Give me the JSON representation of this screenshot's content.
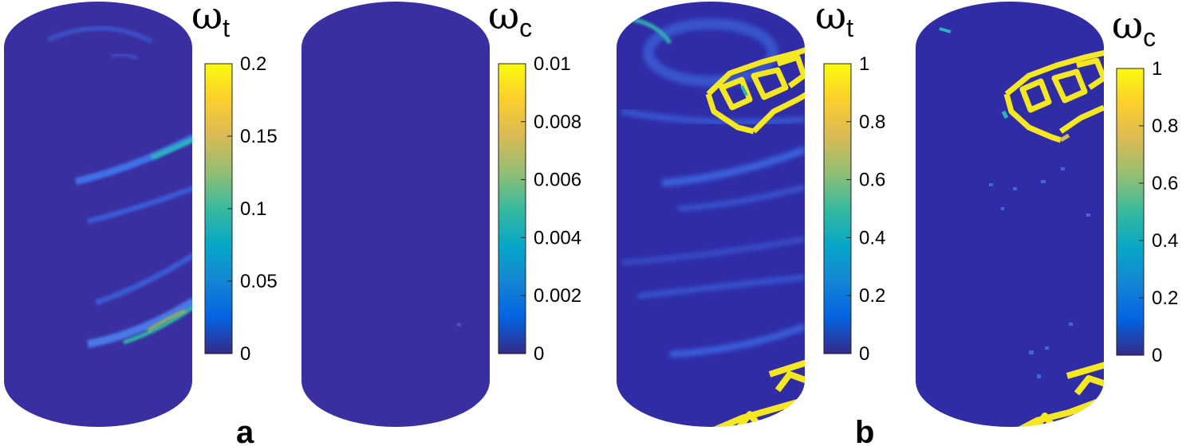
{
  "colors": {
    "background": "#ffffff",
    "cylinder_base": "#3a2fa0",
    "damage_low": "#3d64e0",
    "damage_mid": "#24b8b0",
    "damage_high": "#f5e820",
    "colormap_parula": [
      "#352a87",
      "#0363e1",
      "#1485d4",
      "#06a7c6",
      "#38b99e",
      "#92bf73",
      "#d9ba56",
      "#fcce2e",
      "#f9fb0e"
    ]
  },
  "panels": [
    {
      "id": "a-tension",
      "variable": "ω",
      "subscript": "t",
      "colorbar_ticks": [
        "0",
        "0.05",
        "0.1",
        "0.15",
        "0.2"
      ],
      "colorbar_range": [
        0,
        0.2
      ]
    },
    {
      "id": "a-compression",
      "variable": "ω",
      "subscript": "c",
      "colorbar_ticks": [
        "0",
        "0.002",
        "0.004",
        "0.006",
        "0.008",
        "0.01"
      ],
      "colorbar_range": [
        0,
        0.01
      ]
    },
    {
      "id": "b-tension",
      "variable": "ω",
      "subscript": "t",
      "colorbar_ticks": [
        "0",
        "0.2",
        "0.4",
        "0.6",
        "0.8",
        "1"
      ],
      "colorbar_range": [
        0,
        1
      ]
    },
    {
      "id": "b-compression",
      "variable": "ω",
      "subscript": "c",
      "colorbar_ticks": [
        "0",
        "0.2",
        "0.4",
        "0.6",
        "0.8",
        "1"
      ],
      "colorbar_range": [
        0,
        1
      ]
    }
  ],
  "group_labels": [
    "a",
    "b"
  ]
}
